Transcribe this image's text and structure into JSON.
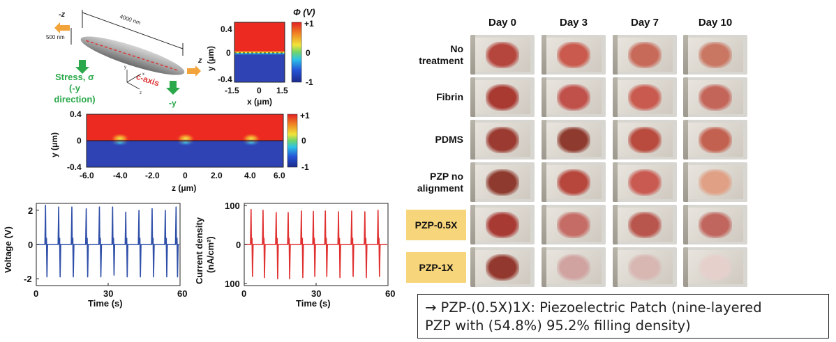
{
  "nanowire": {
    "left_axis": "-z",
    "right_axis": "z",
    "length_label": "4000 nm",
    "width_label": "500 nm",
    "axis_label": "c-axis",
    "stress_label_lines": [
      "Stress, σ",
      "(-y",
      "direction)"
    ],
    "neg_y_label": "-y",
    "axes_small": [
      "x",
      "y",
      "z"
    ]
  },
  "phi_map_small": {
    "title": "Φ (V)",
    "ylabel": "y (μm)",
    "xlabel": "x (μm)",
    "yticks": [
      "0.4",
      "0",
      "-0.4"
    ],
    "xticks": [
      "-1.5",
      "0",
      "1.5"
    ],
    "cbar_ticks": [
      "+1",
      "0",
      "-1"
    ]
  },
  "phi_map_wide": {
    "ylabel": "y (μm)",
    "xlabel": "z (μm)",
    "yticks": [
      "0.4",
      "0",
      "-0.4"
    ],
    "xticks": [
      "-6.0",
      "-4.0",
      "-2.0",
      "0",
      "2.0",
      "4.0",
      "6.0"
    ],
    "cbar_ticks": [
      "+1",
      "0",
      "-1"
    ]
  },
  "chart_data": [
    {
      "type": "line",
      "ylabel": "Voltage (V)",
      "xlabel": "Time (s)",
      "xticks": [
        "0",
        "30",
        "60"
      ],
      "yticks": [
        "2",
        "0",
        "-2"
      ],
      "xlim": [
        0,
        60
      ],
      "ylim": [
        -2.4,
        2.4
      ],
      "color": "#2f4fa8",
      "pulse_times": [
        4,
        9.5,
        15,
        21,
        26.5,
        32,
        37.5,
        43,
        48.5,
        54,
        58.5
      ],
      "peak_values": [
        2.3,
        2.2,
        2.2,
        2.1,
        2.2,
        2.2,
        1.9,
        2.0,
        2.1,
        2.0,
        2.2
      ],
      "trough_values": [
        -1.9,
        -1.9,
        -1.9,
        -1.9,
        -1.9,
        -1.8,
        -1.9,
        -1.9,
        -1.9,
        -1.9,
        -1.9
      ]
    },
    {
      "type": "line",
      "ylabel_lines": [
        "Current density",
        "(nA/cm²)"
      ],
      "xlabel": "Time (s)",
      "xticks": [
        "0",
        "30",
        "60"
      ],
      "yticks": [
        "100",
        "0",
        "100"
      ],
      "xlim": [
        0,
        60
      ],
      "ylim": [
        -105,
        105
      ],
      "color": "#e03030",
      "pulse_times": [
        3,
        8,
        13.5,
        18.5,
        24,
        29,
        34,
        39.5,
        45,
        50.5,
        56
      ],
      "peak_values": [
        90,
        88,
        82,
        82,
        86,
        85,
        86,
        84,
        86,
        84,
        88
      ],
      "trough_values": [
        -82,
        -85,
        -88,
        -88,
        -85,
        -82,
        -82,
        -85,
        -82,
        -85,
        -82
      ]
    }
  ],
  "wound_grid": {
    "columns": [
      "Day 0",
      "Day 3",
      "Day 7",
      "Day 10"
    ],
    "rows": [
      {
        "label": "No\ntreatment",
        "highlight": false
      },
      {
        "label": "Fibrin",
        "highlight": false
      },
      {
        "label": "PDMS",
        "highlight": false
      },
      {
        "label": "PZP no\nalignment",
        "highlight": false
      },
      {
        "label": "PZP-0.5X",
        "highlight": true
      },
      {
        "label": "PZP-1X",
        "highlight": true
      }
    ],
    "highlight_color": "#f7d57a"
  },
  "caption": {
    "line1": "→ PZP-(0.5X)1X: Piezoelectric Patch (nine-layered",
    "line2": "PZP with (54.8%) 95.2% filling density)"
  }
}
